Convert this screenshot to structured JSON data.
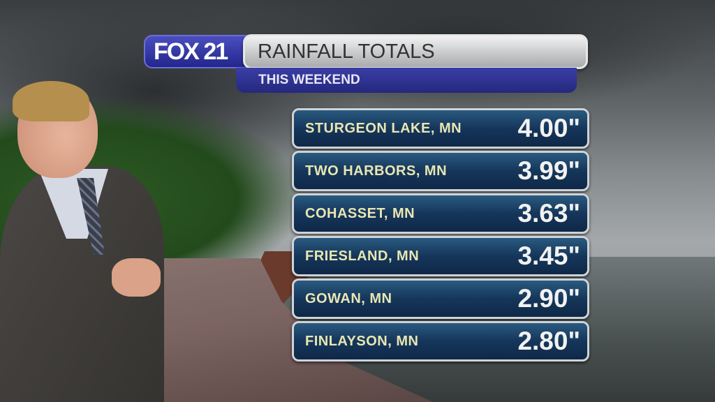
{
  "logo": "FOX 21",
  "header": {
    "title": "RAINFALL TOTALS",
    "subtitle": "THIS WEEKEND"
  },
  "rows": [
    {
      "city": "STURGEON LAKE, MN",
      "value": "4.00\""
    },
    {
      "city": "TWO HARBORS, MN",
      "value": "3.99\""
    },
    {
      "city": "COHASSET, MN",
      "value": "3.63\""
    },
    {
      "city": "FRIESLAND, MN",
      "value": "3.45\""
    },
    {
      "city": "GOWAN, MN",
      "value": "2.90\""
    },
    {
      "city": "FINLAYSON, MN",
      "value": "2.80\""
    }
  ],
  "colors": {
    "brand_blue": "#2f33a0",
    "row_blue": "#15365a",
    "city_text": "#e9e6b3"
  }
}
